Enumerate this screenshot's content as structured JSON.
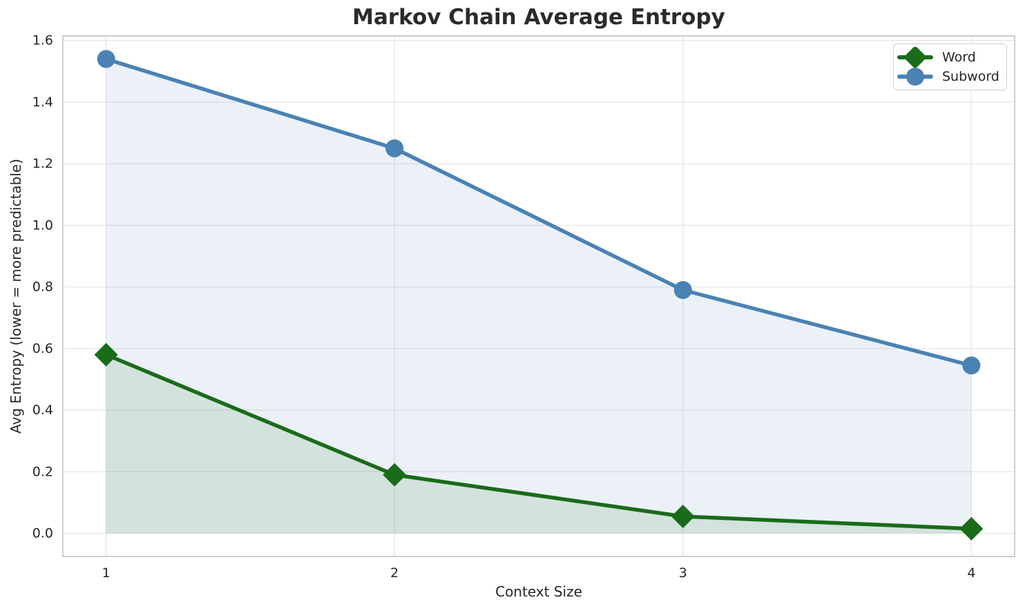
{
  "title": "Markov Chain Average Entropy",
  "chart_data": {
    "type": "line",
    "title": "Markov Chain Average Entropy",
    "xlabel": "Context Size",
    "ylabel": "Avg Entropy (lower = more predictable)",
    "x": [
      1,
      2,
      3,
      4
    ],
    "series": [
      {
        "name": "Word",
        "values": [
          0.58,
          0.19,
          0.055,
          0.015
        ],
        "color": "#1a6b1a",
        "marker": "diamond",
        "fill": true
      },
      {
        "name": "Subword",
        "values": [
          1.54,
          1.25,
          0.79,
          0.545
        ],
        "color": "#4a82b4",
        "marker": "circle",
        "fill": true
      }
    ],
    "xlim": [
      0.85,
      4.15
    ],
    "ylim": [
      -0.075,
      1.615
    ],
    "xticks": {
      "values": [
        1,
        2,
        3,
        4
      ],
      "labels": [
        "1",
        "2",
        "3",
        "4"
      ]
    },
    "yticks": {
      "values": [
        0.0,
        0.2,
        0.4,
        0.6,
        0.8,
        1.0,
        1.2,
        1.4,
        1.6
      ],
      "labels": [
        "0.0",
        "0.2",
        "0.4",
        "0.6",
        "0.8",
        "1.0",
        "1.2",
        "1.4",
        "1.6"
      ]
    },
    "grid": true,
    "fill_baseline": 0,
    "fill_opacity": 0.11,
    "line_width": 5.5,
    "legend_position": "upper right",
    "colors": {
      "grid": "#e7e7e7",
      "spine": "#c8c8c8",
      "text": "#262626",
      "background": "#ffffff"
    }
  }
}
